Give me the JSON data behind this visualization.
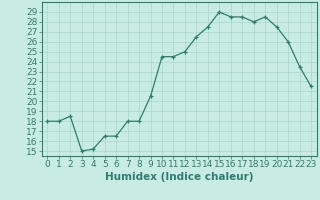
{
  "x": [
    0,
    1,
    2,
    3,
    4,
    5,
    6,
    7,
    8,
    9,
    10,
    11,
    12,
    13,
    14,
    15,
    16,
    17,
    18,
    19,
    20,
    21,
    22,
    23
  ],
  "y": [
    18.0,
    18.0,
    18.5,
    15.0,
    15.2,
    16.5,
    16.5,
    18.0,
    18.0,
    20.5,
    24.5,
    24.5,
    25.0,
    26.5,
    27.5,
    29.0,
    28.5,
    28.5,
    28.0,
    28.5,
    27.5,
    26.0,
    23.5,
    21.5
  ],
  "xlabel": "Humidex (Indice chaleur)",
  "ylim": [
    14.5,
    30.0
  ],
  "xlim": [
    -0.5,
    23.5
  ],
  "yticks": [
    15,
    16,
    17,
    18,
    19,
    20,
    21,
    22,
    23,
    24,
    25,
    26,
    27,
    28,
    29
  ],
  "xticks": [
    0,
    1,
    2,
    3,
    4,
    5,
    6,
    7,
    8,
    9,
    10,
    11,
    12,
    13,
    14,
    15,
    16,
    17,
    18,
    19,
    20,
    21,
    22,
    23
  ],
  "line_color": "#2e7d6e",
  "marker": "+",
  "bg_color": "#c8ece4",
  "grid_color": "#a8d4cc",
  "axis_color": "#2e7d6e",
  "tick_fontsize": 6.5,
  "xlabel_fontsize": 7.5
}
